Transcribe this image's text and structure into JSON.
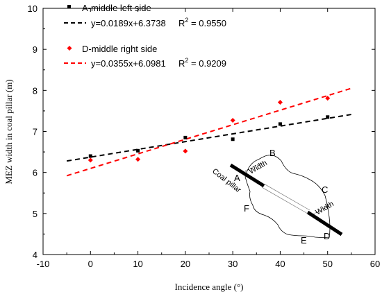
{
  "chart_data": {
    "type": "scatter",
    "xlabel": "Incidence angle (°)",
    "ylabel": "MEZ width in coal pillar (m)",
    "xlim": [
      -10,
      60
    ],
    "ylim": [
      4,
      10
    ],
    "xticks": [
      "-10",
      "0",
      "10",
      "20",
      "30",
      "40",
      "50",
      "60"
    ],
    "yticks": [
      "4",
      "5",
      "6",
      "7",
      "8",
      "9",
      "10"
    ],
    "grid": false,
    "legend_position": "top-left",
    "series": [
      {
        "name": "A-middle left side",
        "color": "#000000",
        "marker": "square",
        "x": [
          0,
          10,
          20,
          30,
          40,
          50
        ],
        "y": [
          6.4,
          6.53,
          6.85,
          6.81,
          7.18,
          7.35
        ],
        "fit_label": "y=0.0189x+6.3738",
        "r2_prefix": "R",
        "r2_sup": "2",
        "r2_value": " = 0.9550",
        "fit": {
          "slope": 0.0189,
          "intercept": 6.3738,
          "x_range": [
            -5,
            55
          ]
        }
      },
      {
        "name": "D-middle right side",
        "color": "#ff0000",
        "marker": "diamond",
        "x": [
          0,
          10,
          20,
          30,
          40,
          50
        ],
        "y": [
          6.3,
          6.32,
          6.52,
          7.27,
          7.71,
          7.81
        ],
        "fit_label": "y=0.0355x+6.0981",
        "r2_prefix": "R",
        "r2_sup": "2",
        "r2_value": " = 0.9209",
        "fit": {
          "slope": 0.0355,
          "intercept": 6.0981,
          "x_range": [
            -5,
            55
          ]
        }
      }
    ],
    "inset": {
      "labels": {
        "A": "A",
        "B": "B",
        "C": "C",
        "D": "D",
        "E": "E",
        "F": "F"
      },
      "width_label_1": "Width",
      "width_label_2": "Width",
      "coal_pillar_label": "Coal pillar"
    }
  }
}
